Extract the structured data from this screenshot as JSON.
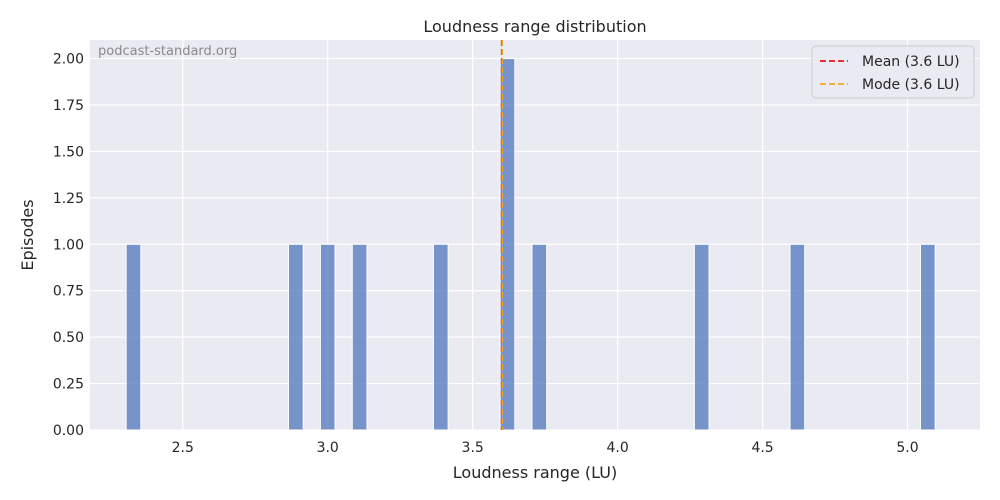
{
  "chart_data": {
    "type": "bar",
    "title": "Loudness range distribution",
    "xlabel": "Loudness range (LU)",
    "ylabel": "Episodes",
    "xlim": [
      2.18,
      5.25
    ],
    "ylim": [
      0,
      2.1
    ],
    "xticks": [
      2.5,
      3.0,
      3.5,
      4.0,
      4.5,
      5.0
    ],
    "xtick_labels": [
      "2.5",
      "3.0",
      "3.5",
      "4.0",
      "4.5",
      "5.0"
    ],
    "yticks": [
      0,
      0.25,
      0.5,
      0.75,
      1.0,
      1.25,
      1.5,
      1.75,
      2.0
    ],
    "ytick_labels": [
      "0.00",
      "0.25",
      "0.50",
      "0.75",
      "1.00",
      "1.25",
      "1.50",
      "1.75",
      "2.00"
    ],
    "bin_width": 0.0506,
    "bars": [
      {
        "x": 2.33,
        "value": 1
      },
      {
        "x": 2.89,
        "value": 1
      },
      {
        "x": 3.0,
        "value": 1
      },
      {
        "x": 3.11,
        "value": 1
      },
      {
        "x": 3.39,
        "value": 1
      },
      {
        "x": 3.62,
        "value": 2
      },
      {
        "x": 3.73,
        "value": 1
      },
      {
        "x": 4.29,
        "value": 1
      },
      {
        "x": 4.62,
        "value": 1
      },
      {
        "x": 5.07,
        "value": 1
      }
    ],
    "reference_lines": [
      {
        "name": "Mean (3.6 LU)",
        "x": 3.6,
        "color": "#e31a1c",
        "style": "dashed"
      },
      {
        "name": "Mode (3.6 LU)",
        "x": 3.6,
        "color": "#f5a623",
        "style": "dashed"
      }
    ],
    "legend_position": "top-right",
    "grid": true,
    "bar_color": "#5a7ebf",
    "background_color": "#eaeaf2"
  },
  "watermark": "podcast-standard.org"
}
